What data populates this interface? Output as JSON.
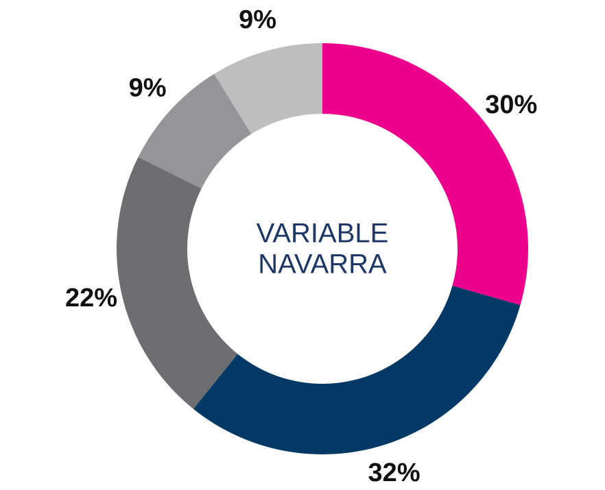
{
  "chart_data": {
    "type": "donut",
    "center_text": [
      "VARIABLE",
      "NAVARRA"
    ],
    "values": [
      30,
      32,
      22,
      9,
      9
    ],
    "value_labels": [
      "30%",
      "32%",
      "22%",
      "9%",
      "9%"
    ],
    "colors": [
      "#ec008c",
      "#033964",
      "#6d6e71",
      "#939598",
      "#bcbec0"
    ]
  }
}
